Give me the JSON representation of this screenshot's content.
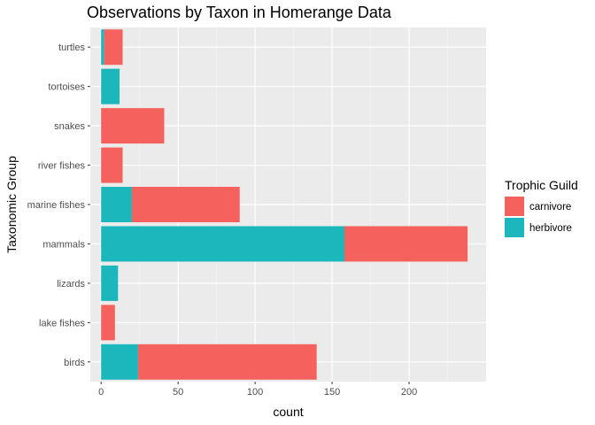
{
  "chart_data": {
    "type": "bar",
    "orientation": "horizontal",
    "stacked": true,
    "title": "Observations by Taxon in Homerange Data",
    "xlabel": "count",
    "ylabel": "Taxonomic Group",
    "categories": [
      "birds",
      "lake fishes",
      "lizards",
      "mammals",
      "marine fishes",
      "river fishes",
      "snakes",
      "tortoises",
      "turtles"
    ],
    "series": [
      {
        "name": "herbivore",
        "color": "#1cb7bd",
        "values": [
          24,
          0,
          11,
          158,
          20,
          0,
          0,
          12,
          2
        ]
      },
      {
        "name": "carnivore",
        "color": "#f5625d",
        "values": [
          116,
          9,
          0,
          80,
          70,
          14,
          41,
          0,
          12
        ]
      }
    ],
    "xlim": [
      -7,
      250
    ],
    "xticks": [
      0,
      50,
      100,
      150,
      200
    ],
    "grid": true,
    "legend": {
      "title": "Trophic Guild",
      "placement": "right",
      "entries": [
        "carnivore",
        "herbivore"
      ]
    }
  }
}
